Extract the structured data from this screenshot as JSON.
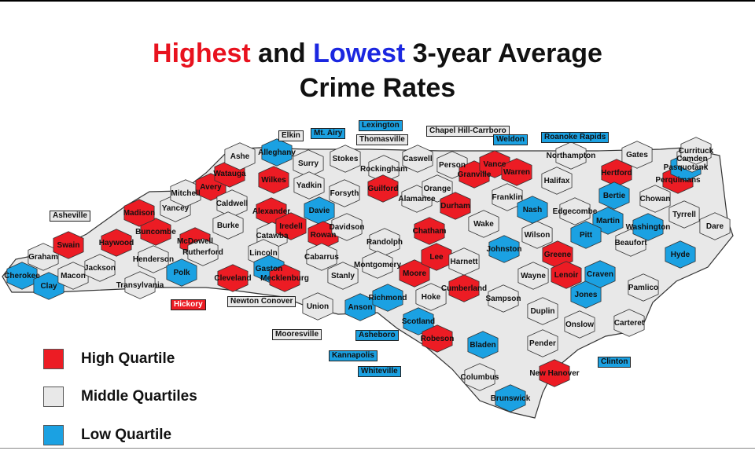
{
  "title": {
    "line1_part1": "Highest",
    "line1_part2": " and ",
    "line1_part3": "Lowest",
    "line1_part4": " 3-year Average",
    "line2": "Crime Rates"
  },
  "colors": {
    "high": "#ec1c24",
    "middle": "#e8e8e8",
    "low": "#1ba1e2",
    "title_red": "#e8121e",
    "title_blue": "#1b27e0"
  },
  "legend": [
    {
      "label": "High Quartile",
      "quartile": "high"
    },
    {
      "label": "Middle Quartiles",
      "quartile": "middle"
    },
    {
      "label": "Low Quartile",
      "quartile": "low"
    }
  ],
  "counties": [
    {
      "name": "Cherokee",
      "q": "low"
    },
    {
      "name": "Clay",
      "q": "low"
    },
    {
      "name": "Graham",
      "q": "middle"
    },
    {
      "name": "Swain",
      "q": "high"
    },
    {
      "name": "Macon",
      "q": "middle"
    },
    {
      "name": "Jackson",
      "q": "middle"
    },
    {
      "name": "Haywood",
      "q": "high"
    },
    {
      "name": "Transylvania",
      "q": "middle"
    },
    {
      "name": "Henderson",
      "q": "middle"
    },
    {
      "name": "Buncombe",
      "q": "high"
    },
    {
      "name": "Madison",
      "q": "high"
    },
    {
      "name": "Yancey",
      "q": "middle"
    },
    {
      "name": "Mitchell",
      "q": "middle"
    },
    {
      "name": "McDowell",
      "q": "high"
    },
    {
      "name": "Polk",
      "q": "low"
    },
    {
      "name": "Rutherford",
      "q": "middle"
    },
    {
      "name": "Avery",
      "q": "high"
    },
    {
      "name": "Watauga",
      "q": "high"
    },
    {
      "name": "Caldwell",
      "q": "middle"
    },
    {
      "name": "Burke",
      "q": "middle"
    },
    {
      "name": "Cleveland",
      "q": "high"
    },
    {
      "name": "Ashe",
      "q": "middle"
    },
    {
      "name": "Alleghany",
      "q": "low"
    },
    {
      "name": "Wilkes",
      "q": "high"
    },
    {
      "name": "Alexander",
      "q": "high"
    },
    {
      "name": "Catawba",
      "q": "middle"
    },
    {
      "name": "Lincoln",
      "q": "middle"
    },
    {
      "name": "Gaston",
      "q": "low"
    },
    {
      "name": "Iredell",
      "q": "high"
    },
    {
      "name": "Mecklenburg",
      "q": "high"
    },
    {
      "name": "Surry",
      "q": "middle"
    },
    {
      "name": "Yadkin",
      "q": "middle"
    },
    {
      "name": "Davie",
      "q": "low"
    },
    {
      "name": "Rowan",
      "q": "high"
    },
    {
      "name": "Cabarrus",
      "q": "middle"
    },
    {
      "name": "Union",
      "q": "middle"
    },
    {
      "name": "Stanly",
      "q": "middle"
    },
    {
      "name": "Stokes",
      "q": "middle"
    },
    {
      "name": "Forsyth",
      "q": "middle"
    },
    {
      "name": "Davidson",
      "q": "middle"
    },
    {
      "name": "Rockingham",
      "q": "middle"
    },
    {
      "name": "Guilford",
      "q": "high"
    },
    {
      "name": "Randolph",
      "q": "middle"
    },
    {
      "name": "Montgomery",
      "q": "middle"
    },
    {
      "name": "Anson",
      "q": "low"
    },
    {
      "name": "Richmond",
      "q": "low"
    },
    {
      "name": "Caswell",
      "q": "middle"
    },
    {
      "name": "Alamance",
      "q": "middle"
    },
    {
      "name": "Chatham",
      "q": "high"
    },
    {
      "name": "Moore",
      "q": "high"
    },
    {
      "name": "Lee",
      "q": "high"
    },
    {
      "name": "Person",
      "q": "middle"
    },
    {
      "name": "Orange",
      "q": "middle"
    },
    {
      "name": "Durham",
      "q": "high"
    },
    {
      "name": "Granville",
      "q": "high"
    },
    {
      "name": "Vance",
      "q": "high"
    },
    {
      "name": "Warren",
      "q": "high"
    },
    {
      "name": "Franklin",
      "q": "middle"
    },
    {
      "name": "Wake",
      "q": "middle"
    },
    {
      "name": "Harnett",
      "q": "middle"
    },
    {
      "name": "Hoke",
      "q": "middle"
    },
    {
      "name": "Scotland",
      "q": "low"
    },
    {
      "name": "Robeson",
      "q": "high"
    },
    {
      "name": "Cumberland",
      "q": "high"
    },
    {
      "name": "Sampson",
      "q": "middle"
    },
    {
      "name": "Bladen",
      "q": "low"
    },
    {
      "name": "Columbus",
      "q": "middle"
    },
    {
      "name": "Brunswick",
      "q": "low"
    },
    {
      "name": "New Hanover",
      "q": "high"
    },
    {
      "name": "Pender",
      "q": "middle"
    },
    {
      "name": "Duplin",
      "q": "middle"
    },
    {
      "name": "Onslow",
      "q": "middle"
    },
    {
      "name": "Johnston",
      "q": "low"
    },
    {
      "name": "Wayne",
      "q": "middle"
    },
    {
      "name": "Wilson",
      "q": "middle"
    },
    {
      "name": "Nash",
      "q": "low"
    },
    {
      "name": "Edgecombe",
      "q": "middle"
    },
    {
      "name": "Halifax",
      "q": "middle"
    },
    {
      "name": "Northampton",
      "q": "middle"
    },
    {
      "name": "Hertford",
      "q": "high"
    },
    {
      "name": "Bertie",
      "q": "low"
    },
    {
      "name": "Martin",
      "q": "low"
    },
    {
      "name": "Pitt",
      "q": "low"
    },
    {
      "name": "Greene",
      "q": "high"
    },
    {
      "name": "Lenoir",
      "q": "high"
    },
    {
      "name": "Jones",
      "q": "low"
    },
    {
      "name": "Craven",
      "q": "low"
    },
    {
      "name": "Carteret",
      "q": "middle"
    },
    {
      "name": "Pamlico",
      "q": "middle"
    },
    {
      "name": "Beaufort",
      "q": "middle"
    },
    {
      "name": "Washington",
      "q": "low"
    },
    {
      "name": "Tyrrell",
      "q": "middle"
    },
    {
      "name": "Hyde",
      "q": "low"
    },
    {
      "name": "Dare",
      "q": "middle"
    },
    {
      "name": "Gates",
      "q": "middle"
    },
    {
      "name": "Chowan",
      "q": "middle"
    },
    {
      "name": "Perquimans",
      "q": "high"
    },
    {
      "name": "Pasquotank",
      "q": "low"
    },
    {
      "name": "Camden",
      "q": "middle"
    },
    {
      "name": "Currituck",
      "q": "middle"
    }
  ],
  "cities": [
    {
      "name": "Asheville",
      "q": "middle"
    },
    {
      "name": "Hickory",
      "q": "high"
    },
    {
      "name": "Newton Conover",
      "q": "middle"
    },
    {
      "name": "Mooresville",
      "q": "middle"
    },
    {
      "name": "Kannapolis",
      "q": "low"
    },
    {
      "name": "Asheboro",
      "q": "low"
    },
    {
      "name": "Elkin",
      "q": "middle"
    },
    {
      "name": "Mt. Airy",
      "q": "low"
    },
    {
      "name": "Lexington",
      "q": "low"
    },
    {
      "name": "Thomasville",
      "q": "middle"
    },
    {
      "name": "Chapel Hill-Carrboro",
      "q": "middle"
    },
    {
      "name": "Weldon",
      "q": "low"
    },
    {
      "name": "Roanoke Rapids",
      "q": "low"
    },
    {
      "name": "Whiteville",
      "q": "low"
    },
    {
      "name": "Clinton",
      "q": "low"
    }
  ]
}
